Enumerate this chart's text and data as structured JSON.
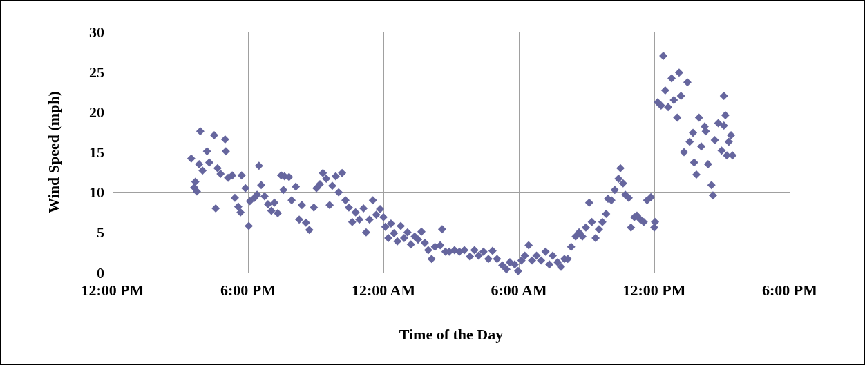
{
  "chart_data": {
    "type": "scatter",
    "xlabel": "Time of the Day",
    "ylabel": "Wind Speed (mph)",
    "xlim": [
      "2000-01-01T12:00",
      "2000-01-02T18:00"
    ],
    "xticks": [
      {
        "value": "2000-01-01T12:00",
        "label": "12:00 PM"
      },
      {
        "value": "2000-01-01T18:00",
        "label": "6:00 PM"
      },
      {
        "value": "2000-01-02T00:00",
        "label": "12:00 AM"
      },
      {
        "value": "2000-01-02T06:00",
        "label": "6:00 AM"
      },
      {
        "value": "2000-01-02T12:00",
        "label": "12:00 PM"
      },
      {
        "value": "2000-01-02T18:00",
        "label": "6:00 PM"
      }
    ],
    "ylim": [
      0,
      30
    ],
    "yticks": [
      0,
      5,
      10,
      15,
      20,
      25,
      30
    ],
    "grid": true,
    "marker": "diamond",
    "series": [
      {
        "color": "#66669e",
        "x": [
          "2000-01-01T15:29",
          "2000-01-01T15:37",
          "2000-01-01T15:40",
          "2000-01-01T15:44",
          "2000-01-01T15:53",
          "2000-01-01T15:50",
          "2000-01-01T15:59",
          "2000-01-01T16:11",
          "2000-01-01T16:17",
          "2000-01-01T16:30",
          "2000-01-01T16:34",
          "2000-01-01T16:39",
          "2000-01-01T16:47",
          "2000-01-01T16:59",
          "2000-01-01T17:01",
          "2000-01-01T17:07",
          "2000-01-01T17:18",
          "2000-01-01T17:25",
          "2000-01-01T17:34",
          "2000-01-01T17:40",
          "2000-01-01T17:43",
          "2000-01-01T17:53",
          "2000-01-01T18:02",
          "2000-01-01T18:05",
          "2000-01-01T18:17",
          "2000-01-01T18:24",
          "2000-01-01T18:29",
          "2000-01-01T18:35",
          "2000-01-01T18:44",
          "2000-01-01T18:53",
          "2000-01-01T19:02",
          "2000-01-01T19:10",
          "2000-01-01T19:19",
          "2000-01-01T19:28",
          "2000-01-01T19:37",
          "2000-01-01T19:34",
          "2000-01-01T19:49",
          "2000-01-01T19:56",
          "2000-01-01T20:07",
          "2000-01-01T20:16",
          "2000-01-01T20:23",
          "2000-01-01T20:34",
          "2000-01-01T20:43",
          "2000-01-01T20:55",
          "2000-01-01T21:02",
          "2000-01-01T21:11",
          "2000-01-01T21:19",
          "2000-01-01T21:28",
          "2000-01-01T21:37",
          "2000-01-01T21:44",
          "2000-01-01T21:53",
          "2000-01-01T22:01",
          "2000-01-01T22:10",
          "2000-01-01T22:19",
          "2000-01-01T22:28",
          "2000-01-01T22:37",
          "2000-01-01T22:46",
          "2000-01-01T22:56",
          "2000-01-01T23:07",
          "2000-01-01T23:14",
          "2000-01-01T23:23",
          "2000-01-01T23:32",
          "2000-01-01T23:41",
          "2000-01-01T23:51",
          "2000-01-02T00:00",
          "2000-01-02T00:05",
          "2000-01-02T00:13",
          "2000-01-02T00:20",
          "2000-01-02T00:28",
          "2000-01-02T00:37",
          "2000-01-02T00:46",
          "2000-01-02T00:55",
          "2000-01-02T01:04",
          "2000-01-02T01:13",
          "2000-01-02T01:23",
          "2000-01-02T01:32",
          "2000-01-02T01:41",
          "2000-01-02T01:50",
          "2000-01-02T01:59",
          "2000-01-02T02:08",
          "2000-01-02T02:17",
          "2000-01-02T02:31",
          "2000-01-02T02:36",
          "2000-01-02T02:45",
          "2000-01-02T02:55",
          "2000-01-02T03:09",
          "2000-01-02T03:22",
          "2000-01-02T03:35",
          "2000-01-02T03:50",
          "2000-01-02T04:02",
          "2000-01-02T04:13",
          "2000-01-02T04:26",
          "2000-01-02T04:39",
          "2000-01-02T04:50",
          "2000-01-02T05:02",
          "2000-01-02T05:16",
          "2000-01-02T05:27",
          "2000-01-02T05:36",
          "2000-01-02T05:49",
          "2000-01-02T05:58",
          "2000-01-02T06:07",
          "2000-01-02T06:16",
          "2000-01-02T06:26",
          "2000-01-02T06:35",
          "2000-01-02T06:47",
          "2000-01-02T06:59",
          "2000-01-02T07:11",
          "2000-01-02T07:21",
          "2000-01-02T07:30",
          "2000-01-02T07:43",
          "2000-01-02T07:52",
          "2000-01-02T08:01",
          "2000-01-02T08:10",
          "2000-01-02T08:19",
          "2000-01-02T08:31",
          "2000-01-02T08:40",
          "2000-01-02T08:49",
          "2000-01-02T08:58",
          "2000-01-02T09:07",
          "2000-01-02T09:14",
          "2000-01-02T09:24",
          "2000-01-02T09:33",
          "2000-01-02T09:42",
          "2000-01-02T09:52",
          "2000-01-02T09:57",
          "2000-01-02T10:06",
          "2000-01-02T10:15",
          "2000-01-02T10:25",
          "2000-01-02T10:30",
          "2000-01-02T10:37",
          "2000-01-02T10:43",
          "2000-01-02T10:52",
          "2000-01-02T10:58",
          "2000-01-02T11:07",
          "2000-01-02T11:14",
          "2000-01-02T11:23",
          "2000-01-02T11:32",
          "2000-01-02T11:41",
          "2000-01-02T11:51",
          "2000-01-02T12:00",
          "2000-01-02T12:02",
          "2000-01-02T12:09",
          "2000-01-02T12:18",
          "2000-01-02T12:24",
          "2000-01-02T12:29",
          "2000-01-02T12:37",
          "2000-01-02T12:46",
          "2000-01-02T12:52",
          "2000-01-02T13:01",
          "2000-01-02T13:06",
          "2000-01-02T13:11",
          "2000-01-02T13:19",
          "2000-01-02T13:28",
          "2000-01-02T13:34",
          "2000-01-02T13:43",
          "2000-01-02T13:46",
          "2000-01-02T13:52",
          "2000-01-02T13:59",
          "2000-01-02T14:05",
          "2000-01-02T14:14",
          "2000-01-02T14:17",
          "2000-01-02T14:23",
          "2000-01-02T14:32",
          "2000-01-02T14:36",
          "2000-01-02T14:41",
          "2000-01-02T14:50",
          "2000-01-02T14:59",
          "2000-01-02T15:05",
          "2000-01-02T15:13",
          "2000-01-02T15:18",
          "2000-01-02T15:05",
          "2000-01-02T15:09",
          "2000-01-02T15:24",
          "2000-01-02T15:28"
        ],
        "values": [
          14.2,
          10.6,
          11.3,
          10.1,
          17.6,
          13.5,
          12.7,
          15.1,
          13.7,
          17.1,
          8.0,
          13.0,
          12.3,
          16.6,
          15.1,
          11.8,
          12.1,
          9.3,
          8.2,
          7.5,
          12.1,
          10.5,
          5.8,
          8.9,
          9.3,
          9.7,
          13.3,
          10.9,
          9.5,
          8.5,
          7.7,
          8.7,
          7.4,
          12.1,
          12.0,
          10.3,
          11.9,
          9.0,
          10.7,
          6.6,
          8.4,
          6.2,
          5.3,
          8.1,
          10.5,
          11.0,
          12.4,
          11.7,
          8.4,
          10.8,
          12.0,
          10.0,
          12.4,
          9.0,
          8.1,
          6.3,
          7.5,
          6.6,
          8.0,
          5.0,
          6.6,
          9.0,
          7.2,
          7.9,
          6.9,
          5.7,
          4.3,
          6.1,
          4.9,
          3.9,
          5.8,
          4.3,
          5.0,
          3.5,
          4.5,
          4.1,
          5.1,
          3.7,
          2.8,
          1.7,
          3.2,
          3.4,
          5.4,
          2.6,
          2.6,
          2.8,
          2.6,
          2.8,
          2.0,
          2.8,
          2.1,
          2.6,
          1.7,
          2.7,
          1.7,
          0.9,
          0.4,
          1.3,
          1.0,
          0.2,
          1.5,
          2.1,
          3.4,
          1.5,
          2.1,
          1.5,
          2.6,
          1.0,
          2.1,
          1.3,
          0.7,
          1.7,
          1.7,
          3.2,
          4.5,
          5.0,
          4.5,
          5.6,
          8.7,
          6.3,
          4.3,
          5.4,
          6.3,
          7.3,
          9.2,
          9.0,
          10.3,
          11.7,
          13.0,
          11.1,
          9.7,
          9.3,
          5.6,
          6.9,
          7.1,
          6.6,
          6.3,
          9.0,
          9.4,
          5.6,
          6.3,
          21.2,
          20.8,
          27.0,
          22.7,
          20.6,
          24.2,
          21.5,
          19.3,
          24.9,
          22.0,
          15.0,
          23.7,
          16.3,
          17.4,
          13.7,
          12.2,
          19.3,
          15.7,
          18.2,
          17.6,
          13.5,
          10.9,
          9.6,
          16.5,
          18.6,
          15.2,
          18.3,
          14.6,
          16.3,
          22.0,
          19.6,
          17.1,
          14.6
        ]
      }
    ]
  }
}
